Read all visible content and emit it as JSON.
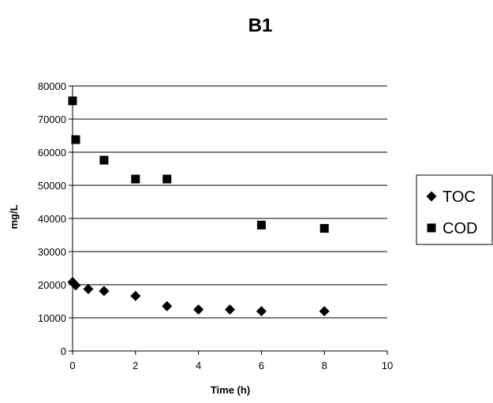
{
  "chart_data": {
    "type": "scatter",
    "title": "B1",
    "xlabel": "Time (h)",
    "ylabel": "mg/L",
    "xlim": [
      0,
      10
    ],
    "ylim": [
      0,
      80000
    ],
    "xticks": [
      0,
      2,
      4,
      6,
      8,
      10
    ],
    "yticks": [
      0,
      10000,
      20000,
      30000,
      40000,
      50000,
      60000,
      70000,
      80000
    ],
    "grid": "horizontal",
    "legend_position": "right",
    "series": [
      {
        "name": "TOC",
        "marker": "diamond",
        "color": "#000000",
        "x": [
          0,
          0.1,
          0.5,
          1,
          2,
          3,
          4,
          5,
          6,
          8
        ],
        "y": [
          20800,
          19800,
          18700,
          18100,
          16600,
          13500,
          12500,
          12500,
          12000,
          12000
        ]
      },
      {
        "name": "COD",
        "marker": "square",
        "color": "#000000",
        "x": [
          0,
          0.1,
          1,
          2,
          3,
          6,
          8
        ],
        "y": [
          75500,
          63800,
          57600,
          51900,
          51900,
          38000,
          37000
        ]
      }
    ]
  }
}
